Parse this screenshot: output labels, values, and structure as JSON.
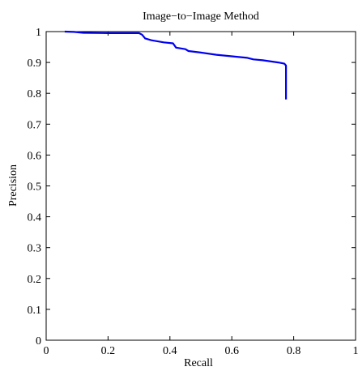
{
  "chart_data": {
    "type": "line",
    "title": "Image−to−Image Method",
    "xlabel": "Recall",
    "ylabel": "Precision",
    "xlim": [
      0,
      1
    ],
    "ylim": [
      0,
      1
    ],
    "xticks": [
      0,
      0.2,
      0.4,
      0.6,
      0.8,
      1
    ],
    "xtick_labels": [
      "0",
      "0.2",
      "0.4",
      "0.6",
      "0.8",
      "1"
    ],
    "yticks": [
      0,
      0.1,
      0.2,
      0.3,
      0.4,
      0.5,
      0.6,
      0.7,
      0.8,
      0.9,
      1
    ],
    "ytick_labels": [
      "0",
      "0.1",
      "0.2",
      "0.3",
      "0.4",
      "0.5",
      "0.6",
      "0.7",
      "0.8",
      "0.9",
      "1"
    ],
    "grid": false,
    "series": [
      {
        "color": "#0000ee",
        "x": [
          0.06,
          0.09,
          0.12,
          0.2,
          0.3,
          0.31,
          0.32,
          0.34,
          0.38,
          0.41,
          0.42,
          0.45,
          0.46,
          0.5,
          0.55,
          0.6,
          0.65,
          0.67,
          0.7,
          0.75,
          0.77,
          0.775,
          0.775,
          0.775
        ],
        "y": [
          1.0,
          0.999,
          0.996,
          0.995,
          0.995,
          0.99,
          0.978,
          0.972,
          0.965,
          0.962,
          0.948,
          0.943,
          0.937,
          0.932,
          0.925,
          0.92,
          0.915,
          0.91,
          0.907,
          0.9,
          0.896,
          0.89,
          0.82,
          0.78
        ]
      }
    ]
  }
}
